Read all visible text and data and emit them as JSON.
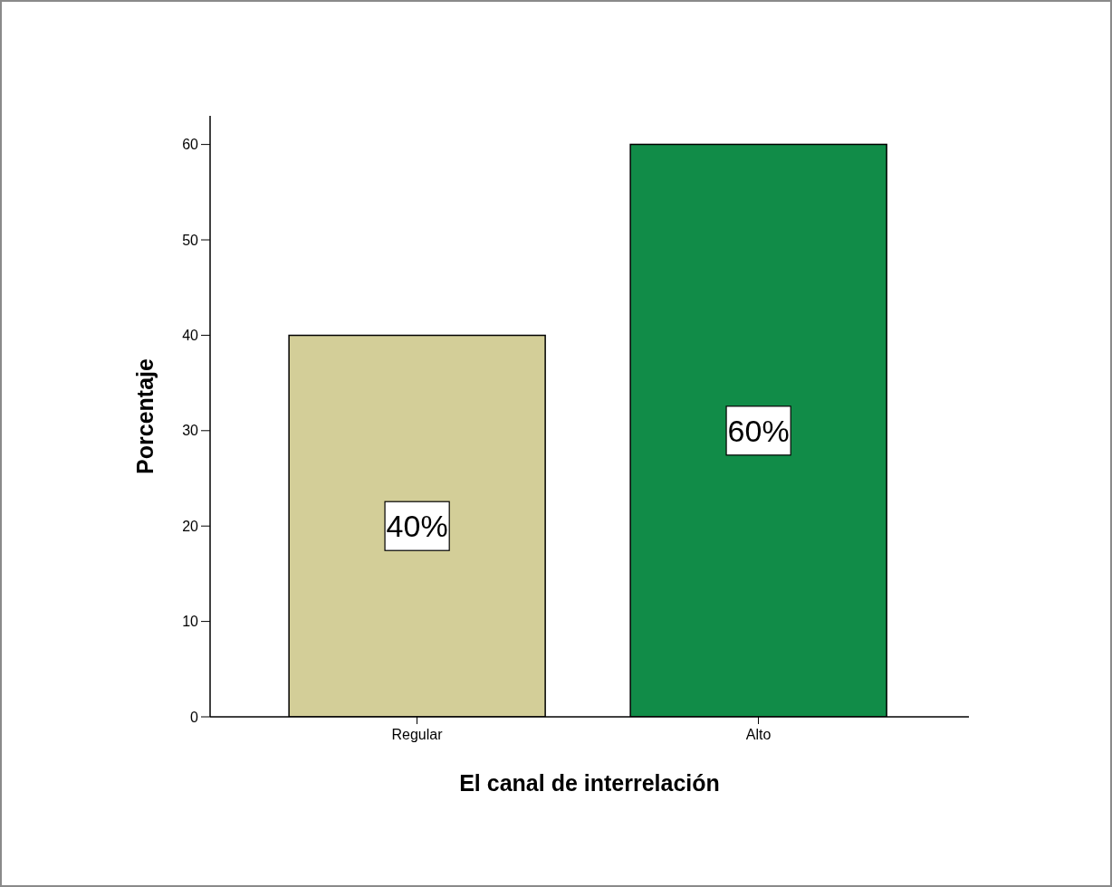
{
  "chart_data": {
    "type": "bar",
    "xlabel": "El canal de interrelación",
    "ylabel": "Porcentaje",
    "categories": [
      "Regular",
      "Alto"
    ],
    "values": [
      40,
      60
    ],
    "colors": [
      "#d3ce98",
      "#118c48"
    ],
    "value_labels": [
      "40%",
      "60%"
    ],
    "ylim": [
      0,
      63
    ],
    "yticks": [
      0,
      10,
      20,
      30,
      40,
      50,
      60
    ]
  }
}
